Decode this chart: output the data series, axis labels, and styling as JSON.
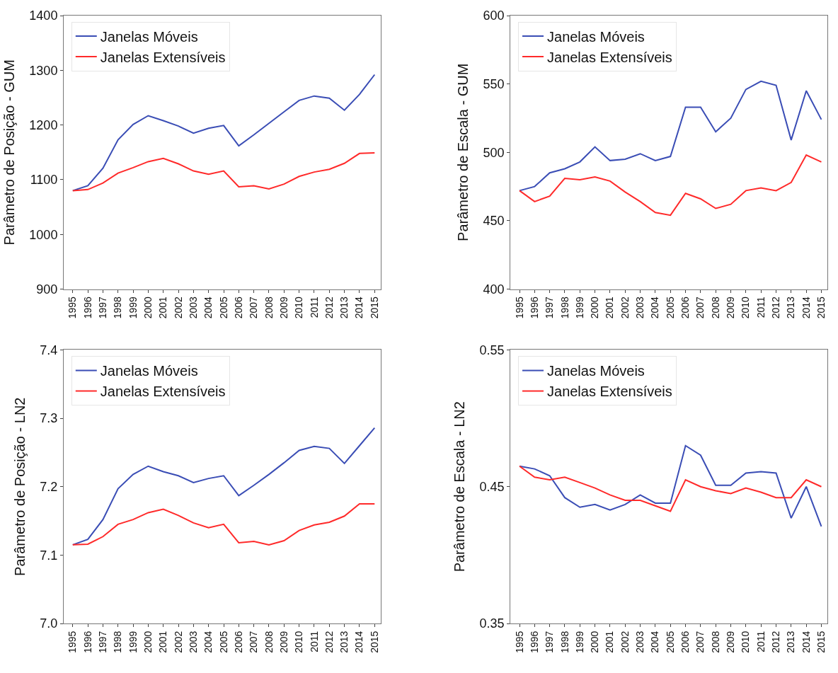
{
  "chart_data": [
    {
      "type": "line",
      "ylabel": "Parâmetro de Posição - GUM",
      "categories": [
        "1995",
        "1996",
        "1997",
        "1998",
        "1999",
        "2000",
        "2001",
        "2002",
        "2003",
        "2004",
        "2005",
        "2006",
        "2007",
        "2008",
        "2009",
        "2010",
        "2011",
        "2012",
        "2013",
        "2014",
        "2015"
      ],
      "ylim": [
        900,
        1400
      ],
      "yticks": [
        900,
        1000,
        1100,
        1200,
        1300,
        1400
      ],
      "legend": "top left",
      "series": [
        {
          "name": "Janelas Móveis",
          "color": "#3a4db5",
          "values": [
            1080,
            1089,
            1121,
            1173,
            1201,
            1217,
            1208,
            1198,
            1185,
            1194,
            1199,
            1162,
            1182,
            1203,
            1224,
            1245,
            1253,
            1249,
            1227,
            1256,
            1292
          ]
        },
        {
          "name": "Janelas Extensíveis",
          "color": "#ff2a2a",
          "values": [
            1080,
            1082,
            1094,
            1112,
            1122,
            1133,
            1139,
            1129,
            1116,
            1110,
            1116,
            1087,
            1089,
            1083,
            1092,
            1106,
            1114,
            1119,
            1130,
            1148,
            1149
          ]
        }
      ]
    },
    {
      "type": "line",
      "ylabel": "Parâmetro de Escala - GUM",
      "categories": [
        "1995",
        "1996",
        "1997",
        "1998",
        "1999",
        "2000",
        "2001",
        "2002",
        "2003",
        "2004",
        "2005",
        "2006",
        "2007",
        "2008",
        "2009",
        "2010",
        "2011",
        "2012",
        "2013",
        "2014",
        "2015"
      ],
      "ylim": [
        400,
        600
      ],
      "yticks": [
        400,
        450,
        500,
        550,
        600
      ],
      "legend": "top left",
      "series": [
        {
          "name": "Janelas Móveis",
          "color": "#3a4db5",
          "values": [
            472,
            475,
            485,
            488,
            493,
            504,
            494,
            495,
            499,
            494,
            497,
            533,
            533,
            515,
            525,
            546,
            552,
            549,
            509,
            545,
            524
          ]
        },
        {
          "name": "Janelas Extensíveis",
          "color": "#ff2a2a",
          "values": [
            472,
            464,
            468,
            481,
            480,
            482,
            479,
            471,
            464,
            456,
            454,
            470,
            466,
            459,
            462,
            472,
            474,
            472,
            478,
            498,
            493
          ]
        }
      ]
    },
    {
      "type": "line",
      "ylabel": "Parâmetro de Posição - LN2",
      "categories": [
        "1995",
        "1996",
        "1997",
        "1998",
        "1999",
        "2000",
        "2001",
        "2002",
        "2003",
        "2004",
        "2005",
        "2006",
        "2007",
        "2008",
        "2009",
        "2010",
        "2011",
        "2012",
        "2013",
        "2014",
        "2015"
      ],
      "ylim": [
        7.0,
        7.4
      ],
      "yticks": [
        {
          "value": 7.0,
          "label": "7.0"
        },
        7.1,
        7.2,
        7.3,
        7.4
      ],
      "legend": "top left",
      "series": [
        {
          "name": "Janelas Móveis",
          "color": "#3a4db5",
          "values": [
            7.115,
            7.123,
            7.152,
            7.197,
            7.218,
            7.23,
            7.222,
            7.216,
            7.206,
            7.212,
            7.216,
            7.187,
            7.202,
            7.218,
            7.235,
            7.253,
            7.259,
            7.256,
            7.234,
            7.26,
            7.286
          ]
        },
        {
          "name": "Janelas Extensíveis",
          "color": "#ff2a2a",
          "values": [
            7.115,
            7.116,
            7.127,
            7.145,
            7.152,
            7.162,
            7.167,
            7.158,
            7.147,
            7.14,
            7.145,
            7.118,
            7.12,
            7.115,
            7.121,
            7.136,
            7.144,
            7.148,
            7.157,
            7.175,
            7.175
          ]
        }
      ]
    },
    {
      "type": "line",
      "ylabel": "Parâmetro de Escala - LN2",
      "categories": [
        "1995",
        "1996",
        "1997",
        "1998",
        "1999",
        "2000",
        "2001",
        "2002",
        "2003",
        "2004",
        "2005",
        "2006",
        "2007",
        "2008",
        "2009",
        "2010",
        "2011",
        "2012",
        "2013",
        "2014",
        "2015"
      ],
      "ylim": [
        0.35,
        0.55
      ],
      "yticks": [
        0.35,
        0.45,
        0.55
      ],
      "legend": "top left",
      "series": [
        {
          "name": "Janelas Móveis",
          "color": "#3a4db5",
          "values": [
            0.465,
            0.463,
            0.458,
            0.442,
            0.435,
            0.437,
            0.433,
            0.437,
            0.444,
            0.438,
            0.438,
            0.48,
            0.473,
            0.451,
            0.451,
            0.46,
            0.461,
            0.46,
            0.427,
            0.45,
            0.421
          ]
        },
        {
          "name": "Janelas Extensíveis",
          "color": "#ff2a2a",
          "values": [
            0.465,
            0.457,
            0.455,
            0.457,
            0.453,
            0.449,
            0.444,
            0.44,
            0.44,
            0.436,
            0.432,
            0.455,
            0.45,
            0.447,
            0.445,
            0.449,
            0.446,
            0.442,
            0.442,
            0.455,
            0.45
          ]
        }
      ]
    }
  ]
}
